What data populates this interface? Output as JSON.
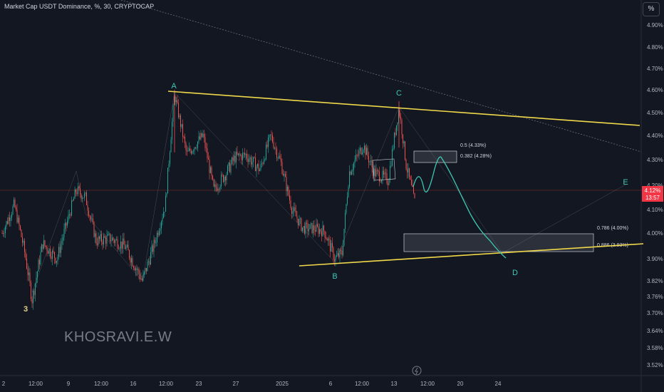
{
  "header": {
    "title": "Market Cap USDT Dominance, %, 30, CRYPTOCAP",
    "percent_button": "%"
  },
  "watermark": "KHOSRAVI.E.W",
  "price_tag": {
    "value": "4.12%",
    "timer": "13:57",
    "color": "#f23645"
  },
  "chart_data": {
    "type": "candlestick",
    "title": "Market Cap USDT Dominance, %, 30, CRYPTOCAP",
    "ylim": [
      3.47,
      4.98
    ],
    "y_ticks": [
      "4.90%",
      "4.80%",
      "4.70%",
      "4.60%",
      "4.50%",
      "4.40%",
      "4.30%",
      "4.20%",
      "4.10%",
      "4.00%",
      "3.90%",
      "3.82%",
      "3.76%",
      "3.70%",
      "3.64%",
      "3.58%",
      "3.52%"
    ],
    "x_ticks": [
      "2",
      "12:00",
      "9",
      "12:00",
      "16",
      "12:00",
      "23",
      "27",
      "2025",
      "6",
      "12:00",
      "13",
      "12:00",
      "20",
      "24"
    ],
    "current_price": 4.12,
    "wave_labels": [
      "3",
      "A",
      "B",
      "C",
      "D",
      "E"
    ],
    "fib_levels": [
      {
        "label": "0.5 (4.33%)",
        "value": 4.33
      },
      {
        "label": "0.382 (4.28%)",
        "value": 4.28
      },
      {
        "label": "0.786 (4.00%)",
        "value": 4.0
      },
      {
        "label": "0.886 (3.93%)",
        "value": 3.93
      }
    ],
    "colors": {
      "up": "#26a69a",
      "down": "#ef5350",
      "trendline": "#f0d84a",
      "projection": "#3dc8b4",
      "wave_label": "#3dc8b4",
      "wave3_label": "#e8d08a"
    }
  }
}
